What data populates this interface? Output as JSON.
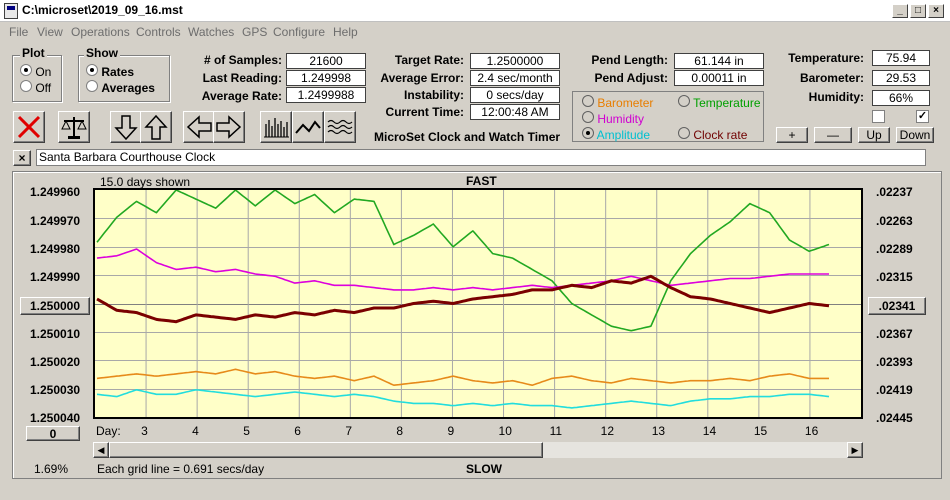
{
  "window": {
    "title": "C:\\microset\\2019_09_16.mst",
    "buttons": [
      "_",
      "□",
      "×"
    ]
  },
  "menu": [
    "File",
    "View",
    "Operations",
    "Controls",
    "Watches",
    "GPS",
    "Configure",
    "Help"
  ],
  "plot_group": {
    "title": "Plot",
    "options": [
      {
        "label": "On",
        "selected": true
      },
      {
        "label": "Off",
        "selected": false
      }
    ]
  },
  "show_group": {
    "title": "Show",
    "options": [
      {
        "label": "Rates",
        "selected": true
      },
      {
        "label": "Averages",
        "selected": false
      }
    ]
  },
  "stats": {
    "samples_label": "# of Samples:",
    "samples": "21600",
    "last_label": "Last Reading:",
    "last": "1.249998",
    "avg_label": "Average Rate:",
    "avg": "1.2499988",
    "target_label": "Target Rate:",
    "target": "1.2500000",
    "averr_label": "Average Error:",
    "averr": "2.4 sec/month",
    "instab_label": "Instability:",
    "instab": "0 secs/day",
    "time_label": "Current Time:",
    "time": "12:00:48 AM",
    "pendlen_label": "Pend Length:",
    "pendlen": "61.144 in",
    "pendadj_label": "Pend Adjust:",
    "pendadj": "0.00011 in",
    "temp_label": "Temperature:",
    "temp": "75.94",
    "baro_label": "Barometer:",
    "baro": "29.53",
    "hum_label": "Humidity:",
    "hum": "66%"
  },
  "app_caption": "MicroSet Clock and Watch Timer",
  "series_select": {
    "options": [
      {
        "label": "Barometer",
        "color": "#e87e00",
        "selected": false
      },
      {
        "label": "Temperature",
        "color": "#00a000",
        "selected": false
      },
      {
        "label": "Humidity",
        "color": "#d000d0",
        "selected": false
      },
      {
        "label": "Amplitude",
        "color": "#00c0d0",
        "selected": true
      },
      {
        "label": "Clock rate",
        "color": "#700000",
        "selected": false
      }
    ]
  },
  "adjust_buttons": [
    "+",
    "—",
    "Up",
    "Down"
  ],
  "clock_name": "Santa Barbara Courthouse Clock",
  "close_x": "×",
  "chart_data": {
    "type": "line",
    "top_label": "FAST",
    "bottom_label": "SLOW",
    "days_shown": "15.0 days shown",
    "grid_note": "Each grid line = 0.691 secs/day",
    "y_left_ticks": [
      "1.249960",
      "1.249970",
      "1.249980",
      "1.249990",
      "1.250000",
      "1.250010",
      "1.250020",
      "1.250030",
      "1.250040"
    ],
    "y_right_ticks": [
      ".02237",
      ".02263",
      ".02289",
      ".02315",
      ".02341",
      ".02367",
      ".02393",
      ".02419",
      ".02445"
    ],
    "x_label": "Day:",
    "x_ticks": [
      "3",
      "4",
      "5",
      "6",
      "7",
      "8",
      "9",
      "10",
      "11",
      "12",
      "13",
      "14",
      "15",
      "16"
    ],
    "left_button": "1.250000",
    "right_button": ".02341",
    "zero_button": "0",
    "pct": "1.69%",
    "series": [
      {
        "name": "Temperature",
        "color": "#22a822",
        "values": [
          0.23,
          0.12,
          0.05,
          0.1,
          0.0,
          0.04,
          0.08,
          0.0,
          0.07,
          0.0,
          0.06,
          0.02,
          0.1,
          0.04,
          0.05,
          0.24,
          0.2,
          0.15,
          0.25,
          0.18,
          0.28,
          0.3,
          0.35,
          0.4,
          0.5,
          0.55,
          0.6,
          0.62,
          0.6,
          0.4,
          0.28,
          0.2,
          0.14,
          0.06,
          0.1,
          0.22,
          0.27,
          0.24
        ]
      },
      {
        "name": "Humidity",
        "color": "#dd00dd",
        "values": [
          0.3,
          0.29,
          0.26,
          0.32,
          0.35,
          0.34,
          0.36,
          0.35,
          0.37,
          0.38,
          0.41,
          0.4,
          0.42,
          0.42,
          0.43,
          0.44,
          0.44,
          0.43,
          0.44,
          0.43,
          0.44,
          0.43,
          0.42,
          0.43,
          0.42,
          0.41,
          0.4,
          0.38,
          0.4,
          0.42,
          0.41,
          0.4,
          0.39,
          0.39,
          0.38,
          0.37,
          0.37,
          0.37
        ]
      },
      {
        "name": "Clock rate",
        "color": "#7a0000",
        "values": [
          0.48,
          0.53,
          0.54,
          0.57,
          0.58,
          0.55,
          0.56,
          0.57,
          0.55,
          0.56,
          0.54,
          0.55,
          0.53,
          0.54,
          0.52,
          0.52,
          0.5,
          0.49,
          0.5,
          0.48,
          0.47,
          0.46,
          0.44,
          0.44,
          0.42,
          0.43,
          0.4,
          0.41,
          0.38,
          0.43,
          0.47,
          0.48,
          0.5,
          0.52,
          0.54,
          0.52,
          0.5,
          0.51
        ]
      },
      {
        "name": "Barometer",
        "color": "#e68a1a",
        "values": [
          0.83,
          0.82,
          0.81,
          0.82,
          0.81,
          0.8,
          0.81,
          0.79,
          0.81,
          0.8,
          0.82,
          0.83,
          0.82,
          0.84,
          0.82,
          0.86,
          0.85,
          0.84,
          0.82,
          0.84,
          0.85,
          0.84,
          0.86,
          0.83,
          0.82,
          0.84,
          0.85,
          0.83,
          0.84,
          0.85,
          0.84,
          0.84,
          0.83,
          0.84,
          0.82,
          0.81,
          0.83,
          0.83
        ]
      },
      {
        "name": "Amplitude",
        "color": "#22dddd",
        "values": [
          0.9,
          0.91,
          0.88,
          0.9,
          0.9,
          0.88,
          0.89,
          0.9,
          0.91,
          0.9,
          0.89,
          0.9,
          0.91,
          0.9,
          0.91,
          0.93,
          0.94,
          0.94,
          0.95,
          0.94,
          0.95,
          0.94,
          0.95,
          0.95,
          0.96,
          0.95,
          0.94,
          0.93,
          0.94,
          0.95,
          0.93,
          0.92,
          0.92,
          0.91,
          0.91,
          0.9,
          0.9,
          0.91
        ]
      }
    ]
  }
}
